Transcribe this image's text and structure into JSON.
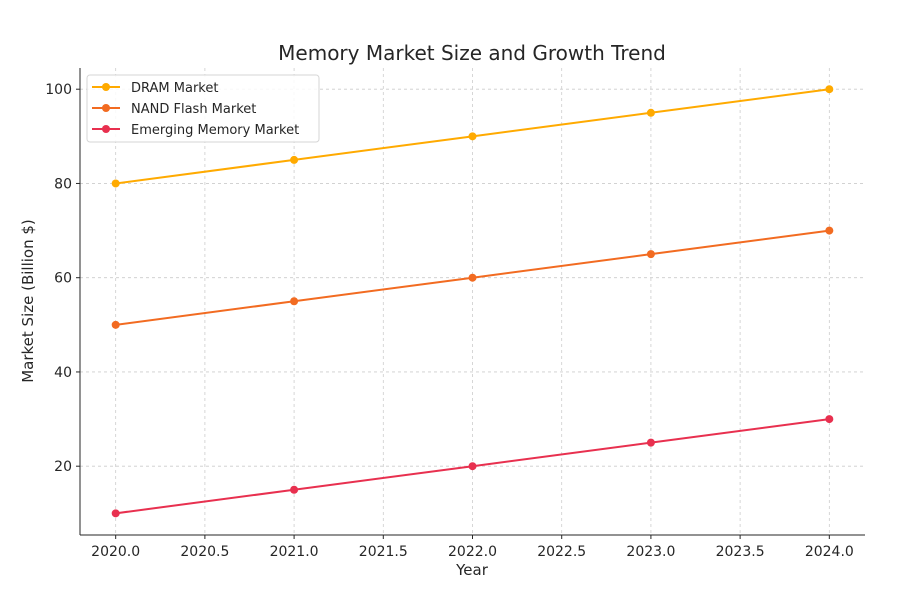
{
  "chart_data": {
    "type": "line",
    "title": "Memory Market Size and Growth Trend",
    "xlabel": "Year",
    "ylabel": "Market Size (Billion $)",
    "xlim": [
      2019.8,
      2024.2
    ],
    "ylim": [
      5.4,
      104.5
    ],
    "xticks": [
      2020.0,
      2020.5,
      2021.0,
      2021.5,
      2022.0,
      2022.5,
      2023.0,
      2023.5,
      2024.0
    ],
    "xtick_labels": [
      "2020.0",
      "2020.5",
      "2021.0",
      "2021.5",
      "2022.0",
      "2022.5",
      "2023.0",
      "2023.5",
      "2024.0"
    ],
    "yticks": [
      20,
      40,
      60,
      80,
      100
    ],
    "ytick_labels": [
      "20",
      "40",
      "60",
      "80",
      "100"
    ],
    "grid": true,
    "legend_position": "top-left",
    "x": [
      2020,
      2021,
      2022,
      2023,
      2024
    ],
    "series": [
      {
        "name": "DRAM Market",
        "color": "#FFAA00",
        "values": [
          80,
          85,
          90,
          95,
          100
        ]
      },
      {
        "name": "NAND Flash Market",
        "color": "#F26B21",
        "values": [
          50,
          55,
          60,
          65,
          70
        ]
      },
      {
        "name": "Emerging Memory Market",
        "color": "#E8304F",
        "values": [
          10,
          15,
          20,
          25,
          30
        ]
      }
    ]
  }
}
